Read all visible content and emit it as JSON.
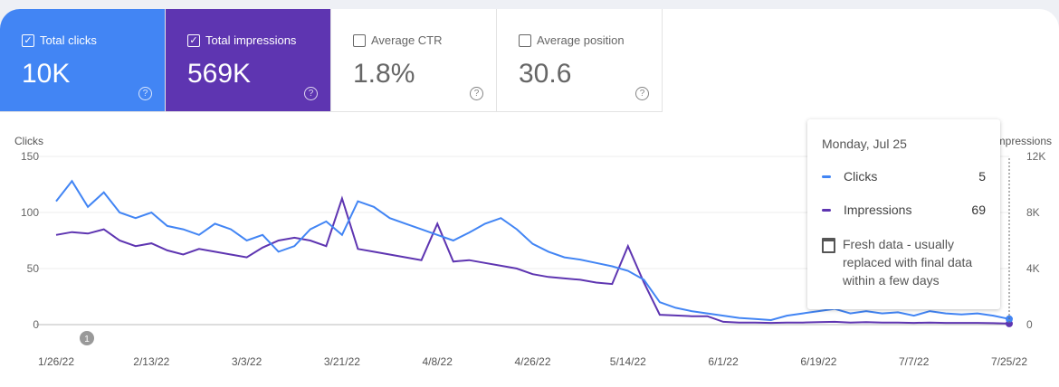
{
  "cards": [
    {
      "label": "Total clicks",
      "value": "10K",
      "checked": true,
      "color": "#4285f4"
    },
    {
      "label": "Total impressions",
      "value": "569K",
      "checked": true,
      "color": "#5e35b1"
    },
    {
      "label": "Average CTR",
      "value": "1.8%",
      "checked": false
    },
    {
      "label": "Average position",
      "value": "30.6",
      "checked": false
    }
  ],
  "annotation_badge": "1",
  "tooltip": {
    "date": "Monday, Jul 25",
    "rows": [
      {
        "label": "Clicks",
        "value": "5"
      },
      {
        "label": "Impressions",
        "value": "69"
      }
    ],
    "note": "Fresh data - usually replaced with final data within a few days",
    "note_icon": "calendar-icon"
  },
  "chart_data": {
    "type": "line",
    "left_axis": {
      "label": "Clicks",
      "ticks": [
        "0",
        "50",
        "100",
        "150"
      ],
      "range": [
        0,
        150
      ]
    },
    "right_axis": {
      "label": "Impressions",
      "ticks": [
        "0",
        "4K",
        "8K",
        "12K"
      ],
      "range": [
        0,
        12000
      ]
    },
    "x_ticks": [
      "1/26/22",
      "2/13/22",
      "3/3/22",
      "3/21/22",
      "4/8/22",
      "4/26/22",
      "5/14/22",
      "6/1/22",
      "6/19/22",
      "7/7/22",
      "7/25/22"
    ],
    "grid": true,
    "x": [
      "1/26",
      "1/29",
      "2/1",
      "2/4",
      "2/7",
      "2/10",
      "2/13",
      "2/16",
      "2/19",
      "2/22",
      "2/25",
      "2/28",
      "3/3",
      "3/6",
      "3/9",
      "3/12",
      "3/15",
      "3/18",
      "3/21",
      "3/24",
      "3/27",
      "3/30",
      "4/2",
      "4/5",
      "4/8",
      "4/11",
      "4/14",
      "4/17",
      "4/20",
      "4/23",
      "4/26",
      "4/29",
      "5/2",
      "5/5",
      "5/8",
      "5/11",
      "5/14",
      "5/17",
      "5/20",
      "5/23",
      "5/26",
      "5/29",
      "6/1",
      "6/4",
      "6/7",
      "6/10",
      "6/13",
      "6/16",
      "6/19",
      "6/22",
      "6/25",
      "6/28",
      "7/1",
      "7/4",
      "7/7",
      "7/10",
      "7/13",
      "7/16",
      "7/19",
      "7/22",
      "7/25"
    ],
    "series": [
      {
        "name": "Clicks",
        "axis": "left",
        "color": "#4285f4",
        "values": [
          110,
          128,
          105,
          118,
          100,
          95,
          100,
          88,
          85,
          80,
          90,
          85,
          75,
          80,
          65,
          70,
          85,
          92,
          80,
          110,
          105,
          95,
          90,
          85,
          80,
          75,
          82,
          90,
          95,
          85,
          72,
          65,
          60,
          58,
          55,
          52,
          48,
          40,
          20,
          15,
          12,
          10,
          8,
          6,
          5,
          4,
          8,
          10,
          12,
          14,
          10,
          12,
          10,
          11,
          8,
          12,
          10,
          9,
          10,
          8,
          5
        ]
      },
      {
        "name": "Impressions",
        "axis": "right",
        "color": "#5e35b1",
        "values": [
          6400,
          6600,
          6500,
          6800,
          6000,
          5600,
          5800,
          5300,
          5000,
          5400,
          5200,
          5000,
          4800,
          5500,
          6000,
          6200,
          6000,
          5600,
          9000,
          5400,
          5200,
          5000,
          4800,
          4600,
          7200,
          4500,
          4600,
          4400,
          4200,
          4000,
          3600,
          3400,
          3300,
          3200,
          3000,
          2900,
          5600,
          3000,
          700,
          650,
          600,
          600,
          200,
          150,
          150,
          120,
          150,
          150,
          180,
          200,
          150,
          180,
          150,
          150,
          120,
          150,
          120,
          120,
          120,
          100,
          69
        ]
      }
    ]
  }
}
